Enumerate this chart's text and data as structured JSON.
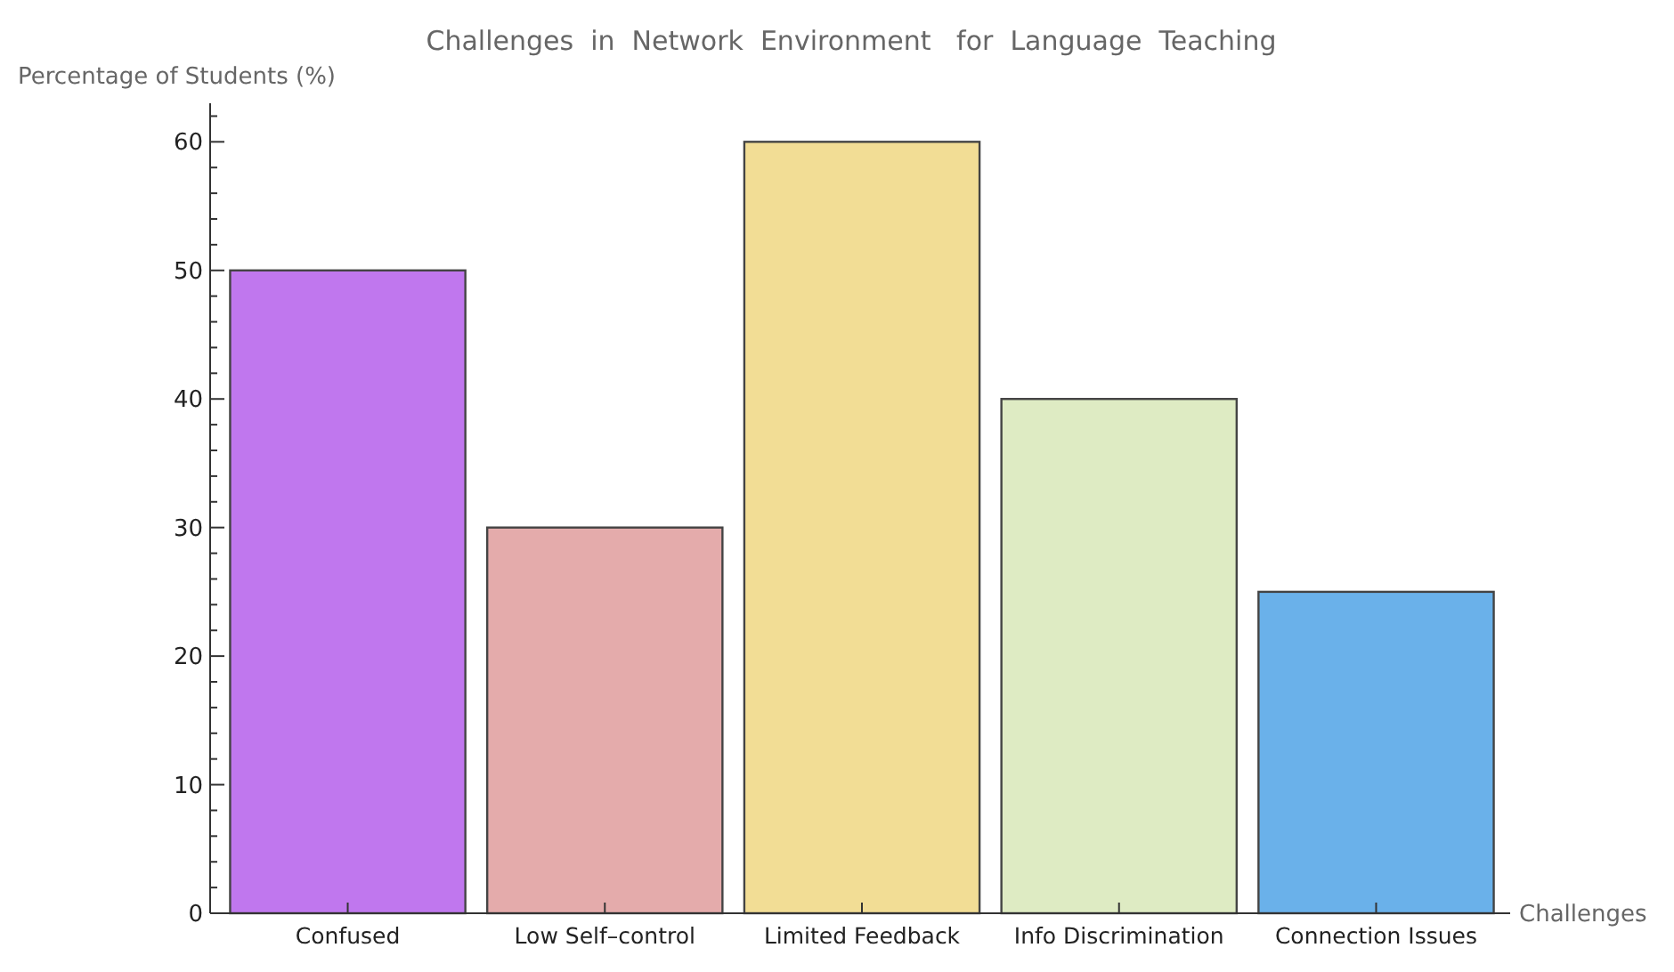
{
  "chart_data": {
    "type": "bar",
    "title": "Challenges  in  Network  Environment   for  Language  Teaching",
    "xlabel": "Challenges",
    "ylabel": "Percentage of Students (%)",
    "categories": [
      "Confused",
      "Low Self–control",
      "Limited Feedback",
      "Info Discrimination",
      "Connection Issues"
    ],
    "values": [
      50,
      30,
      60,
      40,
      25
    ],
    "colors": [
      "#c077ee",
      "#e4abab",
      "#f2dd95",
      "#deebc3",
      "#6ab1ea"
    ],
    "ylim": [
      0,
      63
    ],
    "yticks": [
      0,
      {
        "value": 2,
        "label": null
      },
      {
        "value": 4,
        "label": null
      },
      {
        "value": 6,
        "label": null
      },
      {
        "value": 8,
        "label": null
      },
      10,
      {
        "value": 12,
        "label": null
      },
      {
        "value": 14,
        "label": null
      },
      {
        "value": 16,
        "label": null
      },
      {
        "value": 18,
        "label": null
      },
      20,
      {
        "value": 22,
        "label": null
      },
      {
        "value": 24,
        "label": null
      },
      {
        "value": 26,
        "label": null
      },
      {
        "value": 28,
        "label": null
      },
      30,
      {
        "value": 32,
        "label": null
      },
      {
        "value": 34,
        "label": null
      },
      {
        "value": 36,
        "label": null
      },
      {
        "value": 38,
        "label": null
      },
      40,
      {
        "value": 42,
        "label": null
      },
      {
        "value": 44,
        "label": null
      },
      {
        "value": 46,
        "label": null
      },
      {
        "value": 48,
        "label": null
      },
      50,
      {
        "value": 52,
        "label": null
      },
      {
        "value": 54,
        "label": null
      },
      {
        "value": 56,
        "label": null
      },
      {
        "value": 58,
        "label": null
      },
      60,
      {
        "value": 62,
        "label": null
      }
    ],
    "grid": false
  }
}
